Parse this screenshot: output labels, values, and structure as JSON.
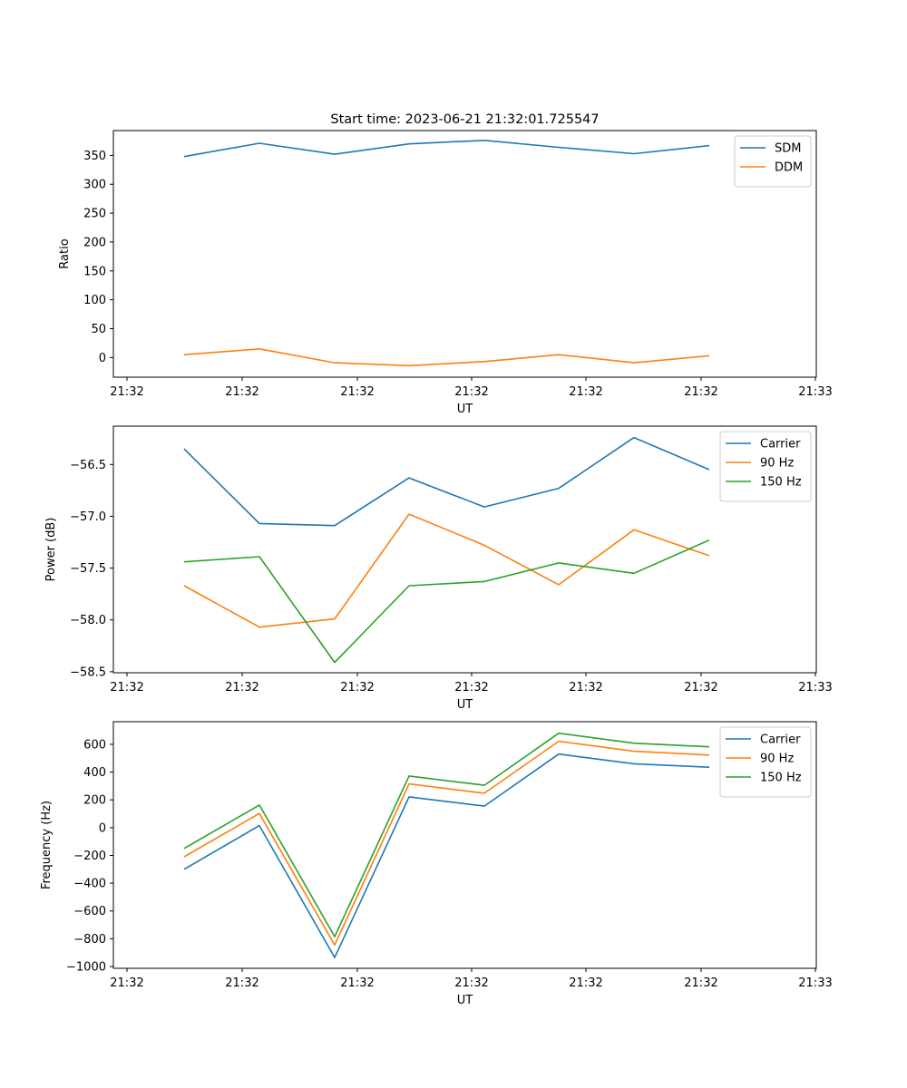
{
  "figure": {
    "title": "Start time: 2023-06-21 21:32:01.725547"
  },
  "chart_data": [
    {
      "type": "line",
      "title": "Start time: 2023-06-21 21:32:01.725547",
      "xlabel": "UT",
      "ylabel": "Ratio",
      "x_tick_labels": [
        "21:32",
        "21:32",
        "21:32",
        "21:32",
        "21:32",
        "21:32",
        "21:33"
      ],
      "y_ticks": [
        0,
        50,
        100,
        150,
        200,
        250,
        300,
        350
      ],
      "ylim": [
        -34,
        393
      ],
      "grid": false,
      "legend_position": "top-right",
      "series": [
        {
          "name": "SDM",
          "color": "#1f77b4",
          "values": [
            348,
            371,
            352,
            370,
            376,
            364,
            353,
            367
          ]
        },
        {
          "name": "DDM",
          "color": "#ff7f0e",
          "values": [
            5,
            15,
            -9,
            -14,
            -7,
            5,
            -9,
            3
          ]
        }
      ]
    },
    {
      "type": "line",
      "xlabel": "UT",
      "ylabel": "Power (dB)",
      "x_tick_labels": [
        "21:32",
        "21:32",
        "21:32",
        "21:32",
        "21:32",
        "21:32",
        "21:33"
      ],
      "y_ticks": [
        -58.5,
        -58.0,
        -57.5,
        -57.0,
        -56.5
      ],
      "ylim": [
        -58.51,
        -56.13
      ],
      "grid": false,
      "legend_position": "top-right",
      "series": [
        {
          "name": "Carrier",
          "color": "#1f77b4",
          "values": [
            -56.35,
            -57.07,
            -57.09,
            -56.63,
            -56.91,
            -56.73,
            -56.24,
            -56.55
          ]
        },
        {
          "name": "90 Hz",
          "color": "#ff7f0e",
          "values": [
            -57.67,
            -58.07,
            -57.99,
            -56.98,
            -57.28,
            -57.66,
            -57.13,
            -57.38
          ]
        },
        {
          "name": "150 Hz",
          "color": "#2ca02c",
          "values": [
            -57.44,
            -57.39,
            -58.41,
            -57.67,
            -57.63,
            -57.45,
            -57.55,
            -57.23
          ]
        }
      ]
    },
    {
      "type": "line",
      "xlabel": "UT",
      "ylabel": "Frequency (Hz)",
      "x_tick_labels": [
        "21:32",
        "21:32",
        "21:32",
        "21:32",
        "21:32",
        "21:32",
        "21:33"
      ],
      "y_ticks": [
        -1000,
        -800,
        -600,
        -400,
        -200,
        0,
        200,
        400,
        600
      ],
      "ylim": [
        -1013,
        763
      ],
      "grid": false,
      "legend_position": "top-right",
      "series": [
        {
          "name": "Carrier",
          "color": "#1f77b4",
          "values": [
            -300,
            15,
            -935,
            222,
            155,
            530,
            460,
            435
          ]
        },
        {
          "name": "90 Hz",
          "color": "#ff7f0e",
          "values": [
            -210,
            102,
            -845,
            315,
            248,
            622,
            550,
            523
          ]
        },
        {
          "name": "150 Hz",
          "color": "#2ca02c",
          "values": [
            -150,
            163,
            -785,
            372,
            305,
            680,
            608,
            582
          ]
        }
      ]
    }
  ]
}
